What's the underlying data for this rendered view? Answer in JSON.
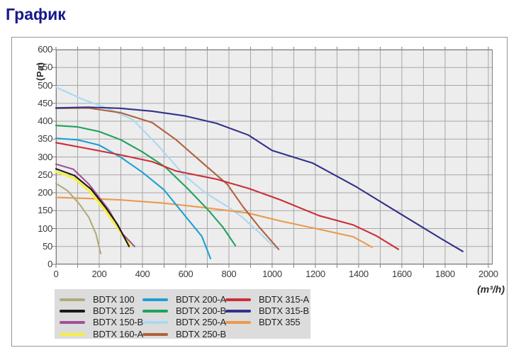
{
  "page_title": "График",
  "chart_data": {
    "type": "line",
    "title": "График",
    "xlabel": "(m³/h)",
    "ylabel": "(Pa)",
    "xlim": [
      0,
      2020
    ],
    "ylim": [
      0,
      600
    ],
    "x_tick_step": 200,
    "x_grid_step": 100,
    "y_tick_step": 50,
    "x_ticks": [
      0,
      200,
      400,
      600,
      800,
      1000,
      1200,
      1400,
      1600,
      1800,
      2000
    ],
    "y_ticks": [
      0,
      50,
      100,
      150,
      200,
      250,
      300,
      350,
      400,
      450,
      500,
      550,
      600
    ],
    "grid": true,
    "legend_position": "bottom",
    "colors": {
      "plot_bg": "#ededed",
      "grid": "#a7a7a7",
      "frame": "#7e7e7e",
      "legend_bg": "#dcdcdc",
      "title": "#18188c"
    },
    "series": [
      {
        "name": "BDTX 100",
        "color": "#b3aa79",
        "points": [
          [
            0,
            226
          ],
          [
            53,
            206
          ],
          [
            109,
            168
          ],
          [
            152,
            131
          ],
          [
            185,
            85
          ],
          [
            207,
            30
          ]
        ]
      },
      {
        "name": "BDTX 125",
        "color": "#1a1a1a",
        "points": [
          [
            0,
            267
          ],
          [
            86,
            248
          ],
          [
            162,
            210
          ],
          [
            228,
            160
          ],
          [
            285,
            111
          ],
          [
            338,
            50
          ]
        ]
      },
      {
        "name": "BDTX 150-B",
        "color": "#a1509a",
        "points": [
          [
            0,
            280
          ],
          [
            80,
            266
          ],
          [
            152,
            224
          ],
          [
            242,
            154
          ],
          [
            308,
            85
          ],
          [
            364,
            50
          ]
        ]
      },
      {
        "name": "BDTX 160-A",
        "color": "#f6ee44",
        "points": [
          [
            0,
            259
          ],
          [
            84,
            241
          ],
          [
            160,
            202
          ],
          [
            226,
            152
          ],
          [
            283,
            104
          ],
          [
            343,
            52
          ]
        ]
      },
      {
        "name": "BDTX 200-A",
        "color": "#1e9fd4",
        "points": [
          [
            0,
            352
          ],
          [
            100,
            348
          ],
          [
            200,
            333
          ],
          [
            300,
            299
          ],
          [
            400,
            257
          ],
          [
            500,
            208
          ],
          [
            610,
            126
          ],
          [
            675,
            78
          ],
          [
            715,
            16
          ]
        ]
      },
      {
        "name": "BDTX 200-B",
        "color": "#1fa25c",
        "points": [
          [
            0,
            388
          ],
          [
            100,
            384
          ],
          [
            200,
            371
          ],
          [
            300,
            348
          ],
          [
            400,
            314
          ],
          [
            505,
            272
          ],
          [
            605,
            214
          ],
          [
            702,
            153
          ],
          [
            772,
            104
          ],
          [
            830,
            52
          ]
        ]
      },
      {
        "name": "BDTX 250-A",
        "color": "#a8d9f2",
        "points": [
          [
            0,
            495
          ],
          [
            120,
            462
          ],
          [
            238,
            436
          ],
          [
            356,
            404
          ],
          [
            475,
            330
          ],
          [
            593,
            249
          ],
          [
            693,
            199
          ],
          [
            800,
            159
          ],
          [
            865,
            130
          ],
          [
            940,
            89
          ],
          [
            1013,
            46
          ]
        ]
      },
      {
        "name": "BDTX 250-B",
        "color": "#b2603d",
        "points": [
          [
            0,
            436
          ],
          [
            150,
            437
          ],
          [
            297,
            424
          ],
          [
            445,
            396
          ],
          [
            554,
            349
          ],
          [
            675,
            285
          ],
          [
            792,
            224
          ],
          [
            865,
            161
          ],
          [
            940,
            104
          ],
          [
            1030,
            42
          ]
        ]
      },
      {
        "name": "BDTX 315-A",
        "color": "#cb2f36",
        "points": [
          [
            0,
            340
          ],
          [
            150,
            323
          ],
          [
            297,
            306
          ],
          [
            445,
            287
          ],
          [
            554,
            261
          ],
          [
            742,
            238
          ],
          [
            891,
            212
          ],
          [
            1039,
            180
          ],
          [
            1217,
            136
          ],
          [
            1375,
            110
          ],
          [
            1484,
            79
          ],
          [
            1584,
            42
          ]
        ]
      },
      {
        "name": "BDTX 315-B",
        "color": "#32318c",
        "points": [
          [
            0,
            437
          ],
          [
            150,
            439
          ],
          [
            297,
            436
          ],
          [
            445,
            428
          ],
          [
            594,
            415
          ],
          [
            742,
            394
          ],
          [
            891,
            361
          ],
          [
            1000,
            318
          ],
          [
            1187,
            283
          ],
          [
            1385,
            218
          ],
          [
            1583,
            145
          ],
          [
            1781,
            72
          ],
          [
            1882,
            36
          ]
        ]
      },
      {
        "name": "BDTX 355",
        "color": "#eb9a4d",
        "points": [
          [
            0,
            187
          ],
          [
            148,
            184
          ],
          [
            297,
            180
          ],
          [
            495,
            171
          ],
          [
            693,
            158
          ],
          [
            891,
            143
          ],
          [
            1039,
            121
          ],
          [
            1217,
            98
          ],
          [
            1375,
            77
          ],
          [
            1462,
            48
          ]
        ]
      }
    ]
  }
}
